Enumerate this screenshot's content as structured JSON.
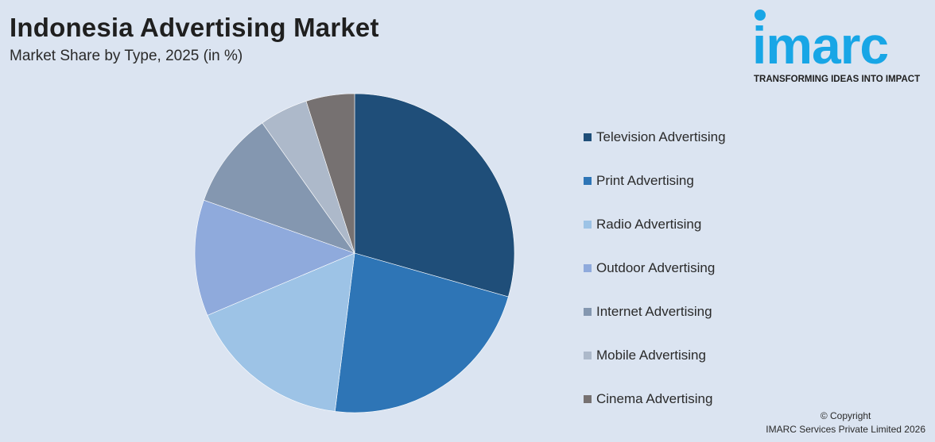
{
  "header": {
    "title": "Indonesia Advertising Market",
    "subtitle": "Market Share by Type, 2025 (in %)"
  },
  "logo": {
    "wordmark": "imarc",
    "tagline": "TRANSFORMING IDEAS INTO IMPACT",
    "color": "#18a6e6"
  },
  "chart_data": {
    "type": "pie",
    "title": "Indonesia Advertising Market",
    "subtitle": "Market Share by Type, 2025 (in %)",
    "legend_position": "right",
    "start_angle": "12 o'clock",
    "direction": "clockwise",
    "categories": [
      "Television Advertising",
      "Print Advertising",
      "Radio Advertising",
      "Outdoor Advertising",
      "Internet Advertising",
      "Mobile Advertising",
      "Cinema Advertising"
    ],
    "values": [
      30,
      23,
      17,
      12,
      10,
      5,
      5
    ],
    "colors": [
      "#1f4e79",
      "#2e75b6",
      "#9dc3e6",
      "#8faadc",
      "#8497b0",
      "#adb9ca",
      "#767171"
    ]
  },
  "footer": {
    "copyright_line1": "© Copyright",
    "copyright_line2": "IMARC Services Private Limited 2026"
  }
}
